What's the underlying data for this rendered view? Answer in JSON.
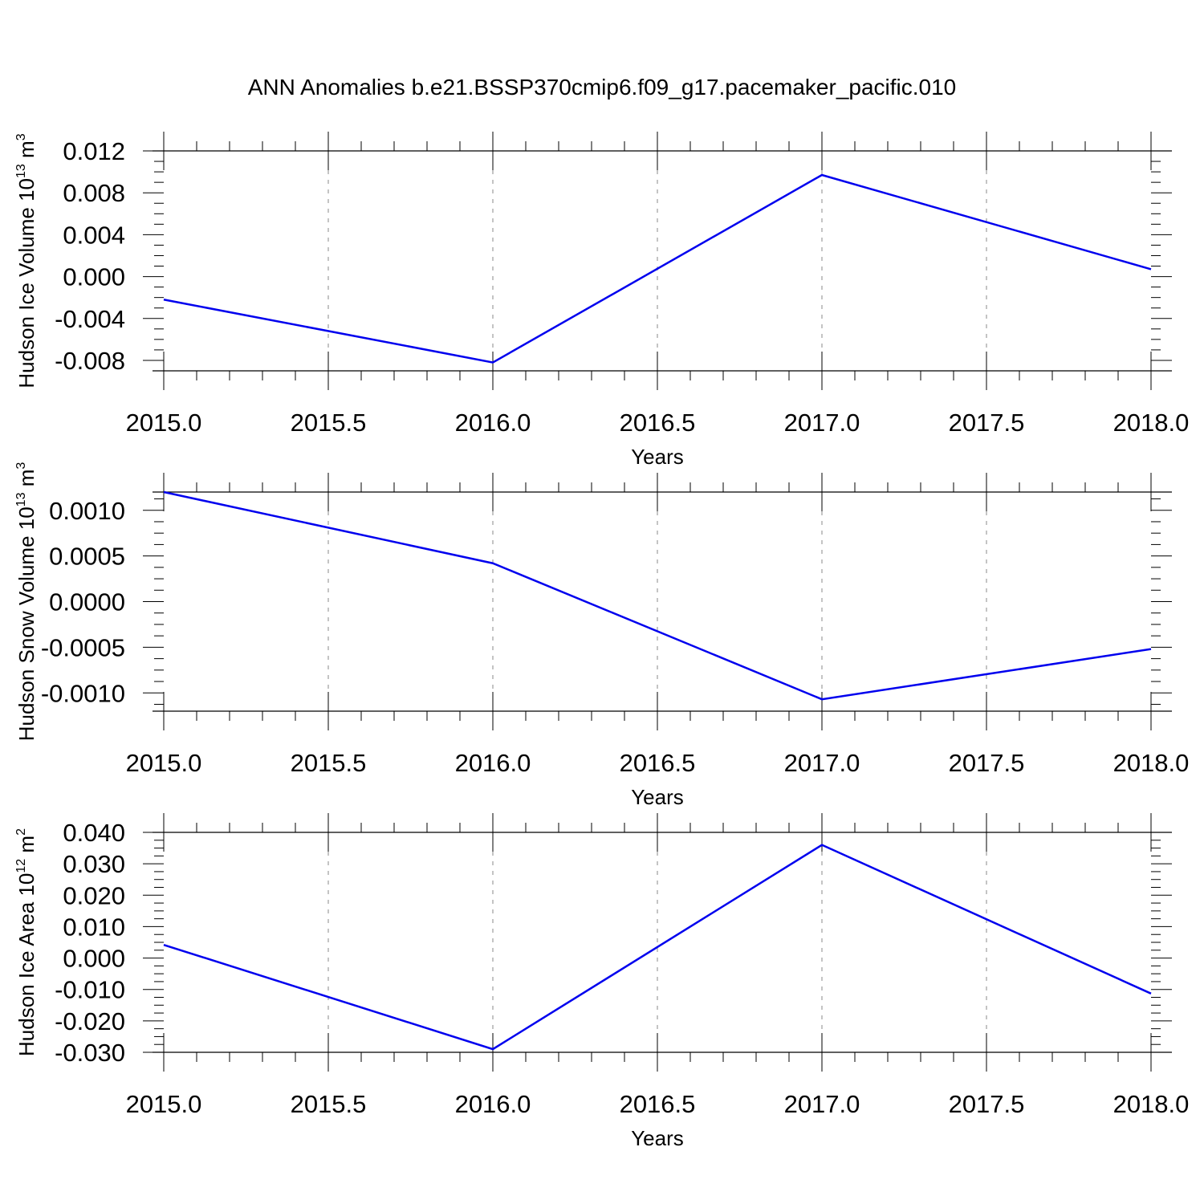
{
  "title": "ANN Anomalies b.e21.BSSP370cmip6.f09_g17.pacemaker_pacific.010",
  "chart_data": [
    {
      "type": "line",
      "xlabel": "Years",
      "ylabel": {
        "text": "Hudson Ice Volume 10",
        "exp": "13",
        "unit": "m",
        "unit_exp": "3"
      },
      "x": [
        2015,
        2016,
        2017,
        2018
      ],
      "xlim": [
        2015,
        2018
      ],
      "x_ticks": [
        "2015.0",
        "2015.5",
        "2016.0",
        "2016.5",
        "2017.0",
        "2017.5",
        "2018.0"
      ],
      "ylim": [
        -0.009,
        0.012
      ],
      "y_ticks": [
        0.012,
        0.008,
        0.004,
        0.0,
        -0.004,
        -0.008
      ],
      "y_tick_labels": [
        "0.012",
        "0.008",
        "0.004",
        "0.000",
        "-0.004",
        "-0.008"
      ],
      "series": [
        {
          "values": [
            -0.0022,
            -0.0082,
            0.0097,
            0.0007
          ],
          "color": "#0000ee"
        }
      ],
      "grid": "vertical dashed"
    },
    {
      "type": "line",
      "xlabel": "Years",
      "ylabel": {
        "text": "Hudson Snow Volume 10",
        "exp": "13",
        "unit": "m",
        "unit_exp": "3"
      },
      "x": [
        2015,
        2016,
        2017,
        2018
      ],
      "xlim": [
        2015,
        2018
      ],
      "x_ticks": [
        "2015.0",
        "2015.5",
        "2016.0",
        "2016.5",
        "2017.0",
        "2017.5",
        "2018.0"
      ],
      "ylim": [
        -0.0012,
        0.0012
      ],
      "y_ticks": [
        0.001,
        0.0005,
        0.0,
        -0.0005,
        -0.001
      ],
      "y_tick_labels": [
        "0.0010",
        "0.0005",
        "0.0000",
        "-0.0005",
        "-0.0010"
      ],
      "series": [
        {
          "values": [
            0.0012,
            0.00042,
            -0.00107,
            -0.00052
          ],
          "color": "#0000ee"
        }
      ],
      "grid": "vertical dashed"
    },
    {
      "type": "line",
      "xlabel": "Years",
      "ylabel": {
        "text": "Hudson Ice Area 10",
        "exp": "12",
        "unit": "m",
        "unit_exp": "2"
      },
      "x": [
        2015,
        2016,
        2017,
        2018
      ],
      "xlim": [
        2015,
        2018
      ],
      "x_ticks": [
        "2015.0",
        "2015.5",
        "2016.0",
        "2016.5",
        "2017.0",
        "2017.5",
        "2018.0"
      ],
      "ylim": [
        -0.03,
        0.04
      ],
      "y_ticks": [
        0.04,
        0.03,
        0.02,
        0.01,
        0.0,
        -0.01,
        -0.02,
        -0.03
      ],
      "y_tick_labels": [
        "0.040",
        "0.030",
        "0.020",
        "0.010",
        "0.000",
        "-0.010",
        "-0.020",
        "-0.030"
      ],
      "series": [
        {
          "values": [
            0.0042,
            -0.029,
            0.036,
            -0.0113
          ],
          "color": "#0000ee"
        }
      ],
      "grid": "vertical dashed"
    }
  ]
}
